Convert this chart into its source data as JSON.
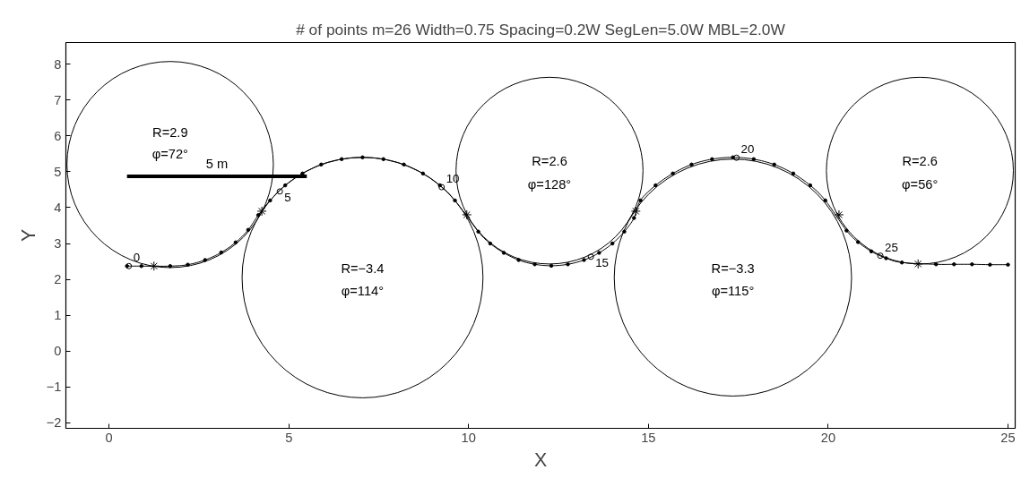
{
  "chart_data": {
    "type": "line",
    "title": "# of points m=26 Width=0.75 Spacing=0.2W SegLen=5.0W MBL=2.0W",
    "xlabel": "X",
    "ylabel": "Y",
    "xlim": [
      -1.2,
      25.2
    ],
    "ylim": [
      -2.15,
      8.6
    ],
    "xticks": [
      0,
      5,
      10,
      15,
      20,
      25
    ],
    "yticks": [
      {
        "value": -2,
        "label": "−2"
      },
      {
        "value": -1,
        "label": "−1"
      },
      0,
      1,
      2,
      3,
      4,
      5,
      6,
      7,
      8
    ],
    "grid": false,
    "line_style": "solid",
    "series": [
      {
        "color": "#000000",
        "marker": "circle",
        "x": [
          0.5,
          0.9,
          1.7,
          2.19,
          2.67,
          3.12,
          3.52,
          3.87,
          4.15,
          4.48,
          4.9,
          5.38,
          5.9,
          6.47,
          7.05,
          7.63,
          8.2,
          8.73,
          9.2,
          9.62,
          10.27,
          10.6,
          10.98,
          11.39,
          11.84,
          12.3,
          12.76,
          13.21,
          13.63,
          14.0,
          14.33,
          14.6,
          14.78,
          15.2,
          15.68,
          16.2,
          16.77,
          17.35,
          17.93,
          18.5,
          19.03,
          19.5,
          19.92,
          20.51,
          20.83,
          21.2,
          21.61,
          22.05,
          23.0,
          23.5,
          24.0,
          24.5,
          25.0
        ],
        "values": [
          2.37,
          2.37,
          2.37,
          2.41,
          2.54,
          2.75,
          3.03,
          3.38,
          3.79,
          4.2,
          4.62,
          4.95,
          5.2,
          5.35,
          5.4,
          5.35,
          5.2,
          4.95,
          4.62,
          4.2,
          3.33,
          3.0,
          2.74,
          2.54,
          2.42,
          2.38,
          2.42,
          2.54,
          2.74,
          3.0,
          3.33,
          3.71,
          4.2,
          4.62,
          4.95,
          5.2,
          5.35,
          5.4,
          5.35,
          5.2,
          4.95,
          4.62,
          4.2,
          3.36,
          3.04,
          2.78,
          2.59,
          2.47,
          2.42,
          2.42,
          2.42,
          2.41,
          2.41
        ]
      },
      {
        "type": "scatter",
        "color": "#000000",
        "marker": "cross",
        "x": [
          1.25,
          4.25,
          9.95,
          14.65,
          20.3,
          22.5
        ],
        "values": [
          2.37,
          3.9,
          3.8,
          3.9,
          3.8,
          2.43
        ]
      },
      {
        "color": "#000000",
        "marker": "none",
        "x": [
          0.5,
          5.5
        ],
        "values": [
          4.87,
          4.87
        ]
      }
    ],
    "annotations": [
      "R=2.9",
      "φ=72°",
      "5 m",
      "R=−3.4",
      "φ=114°",
      "R=2.6",
      "φ=128°",
      "R=−3.3",
      "φ=115°",
      "R=2.6",
      "φ=56°",
      {
        "text": "0",
        "x": 0.55,
        "y": 2.37
      },
      {
        "text": "5",
        "x": 4.75,
        "y": 4.45
      },
      {
        "text": "10",
        "x": 9.25,
        "y": 4.57
      },
      {
        "text": "15",
        "x": 13.4,
        "y": 2.63
      },
      {
        "text": "20",
        "x": 17.45,
        "y": 5.39
      },
      {
        "text": "25",
        "x": 21.45,
        "y": 2.66
      }
    ]
  }
}
